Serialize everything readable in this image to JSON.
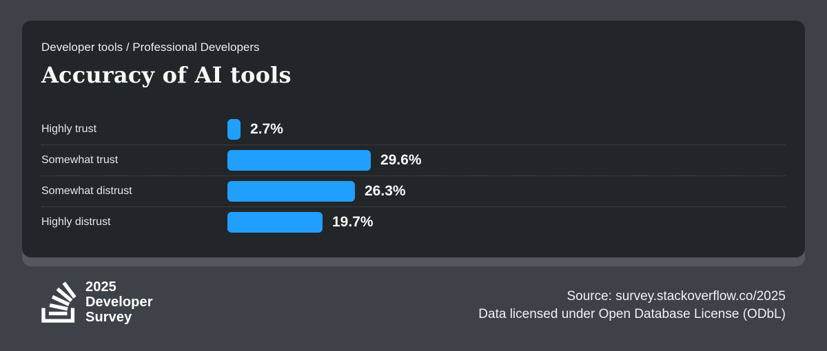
{
  "card": {
    "subtitle": "Developer tools / Professional Developers",
    "title": "Accuracy of AI tools"
  },
  "chart_data": {
    "type": "bar",
    "orientation": "horizontal",
    "title": "Accuracy of AI tools",
    "subtitle": "Developer tools / Professional Developers",
    "categories": [
      "Highly trust",
      "Somewhat trust",
      "Somewhat distrust",
      "Highly distrust"
    ],
    "values": [
      2.7,
      29.6,
      26.3,
      19.7
    ],
    "value_labels": [
      "2.7%",
      "29.6%",
      "26.3%",
      "19.7%"
    ],
    "unit": "%",
    "bar_color": "#219fff",
    "grid": false,
    "legend": false,
    "value_label_position": "right-of-bar"
  },
  "footer": {
    "logo": {
      "icon": "stackoverflow-icon",
      "year": "2025",
      "line2": "Developer",
      "line3": "Survey"
    },
    "source_line1": "Source: survey.stackoverflow.co/2025",
    "source_line2": "Data licensed under Open Database License (ODbL)"
  },
  "colors": {
    "page_background": "#3d4249",
    "card_background": "#232629",
    "card_shadow": "#53575e",
    "bar": "#219fff",
    "category_label": "#e3e6e9",
    "value_label": "#f7f8f9",
    "divider": "#4a4f55",
    "footer_text": "#eef0f2"
  }
}
